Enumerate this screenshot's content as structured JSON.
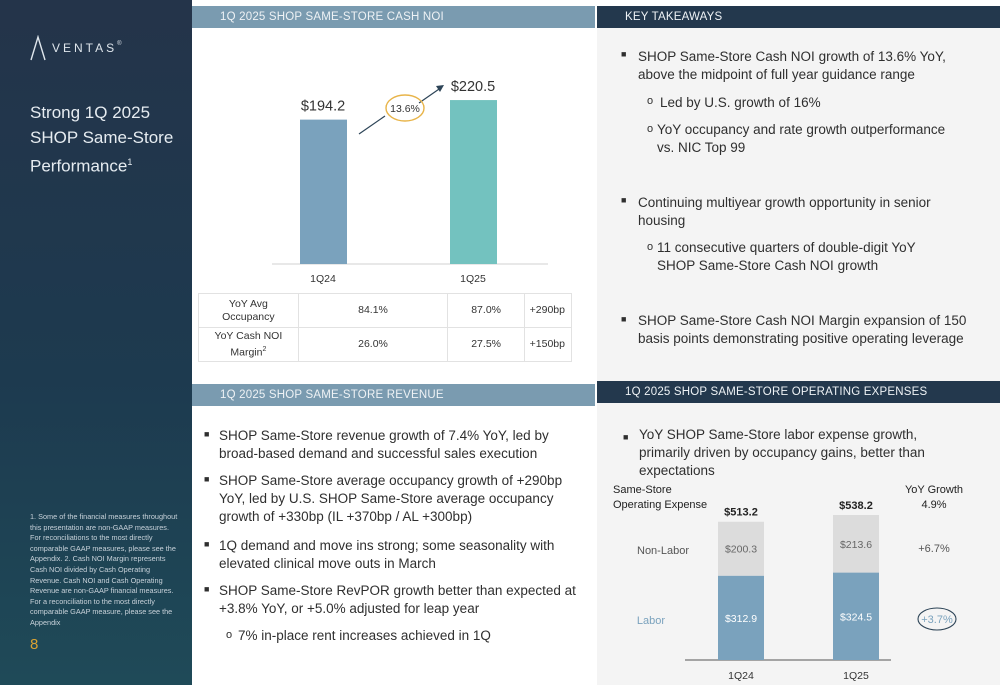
{
  "sidebar": {
    "logo_text": "VENTAS",
    "logo_mark": "®",
    "title": "Strong 1Q 2025 SHOP Same-Store Performance",
    "title_sup": "1",
    "footnote": "1. Some of the financial measures throughout this presentation are non-GAAP measures. For reconciliations to the most directly comparable GAAP measures, please see the Appendix. 2. Cash NOI Margin represents Cash NOI divided by Cash Operating Revenue. Cash NOI and Cash Operating Revenue are non-GAAP financial measures. For a reconciliation to the most directly comparable GAAP measure, please see the Appendix",
    "page_number": "8"
  },
  "headers": {
    "noi": "1Q 2025 SHOP SAME-STORE CASH NOI",
    "takeaways": "KEY TAKEAWAYS",
    "revenue": "1Q 2025 SHOP SAME-STORE REVENUE",
    "opex": "1Q 2025 SHOP SAME-STORE OPERATING EXPENSES"
  },
  "takeaways": {
    "b1": "SHOP Same-Store Cash NOI growth of 13.6% YoY, above the midpoint of full year guidance range",
    "b1_sub1": "Led by U.S. growth of 16%",
    "b1_sub2": "YoY occupancy and rate growth outperformance vs. NIC Top 99",
    "b2": "Continuing multiyear growth opportunity in senior housing",
    "b2_sub1": "11 consecutive quarters of double-digit YoY SHOP Same-Store Cash NOI growth",
    "b3": "SHOP Same-Store Cash NOI Margin expansion of 150 basis points demonstrating positive operating leverage"
  },
  "revenue": {
    "b1": "SHOP Same-Store revenue growth of 7.4% YoY, led by broad-based demand and successful sales execution",
    "b2": "SHOP Same-Store average occupancy growth of +290bp YoY, led by U.S. SHOP Same-Store average occupancy growth of +330bp (IL +370bp / AL +300bp)",
    "b3": "1Q demand and move ins strong; some seasonality with elevated clinical move outs in March",
    "b4": "SHOP Same-Store RevPOR growth better than expected at +3.8% YoY, or +5.0% adjusted for leap year",
    "b4_sub1": "7% in-place rent increases achieved in 1Q"
  },
  "opex": {
    "b1": "YoY SHOP Same-Store labor expense growth, primarily driven by occupancy gains, better than expectations"
  },
  "noi_table": {
    "rows": [
      {
        "label_line1": "YoY Avg",
        "label_line2": "Occupancy",
        "sup": "",
        "v1": "84.1%",
        "v2": "87.0%",
        "delta": "+290bp"
      },
      {
        "label_line1": "YoY Cash NOI",
        "label_line2": "Margin",
        "sup": "2",
        "v1": "26.0%",
        "v2": "27.5%",
        "delta": "+150bp"
      }
    ]
  },
  "chart_data": [
    {
      "type": "bar",
      "title": "1Q 2025 SHOP SAME-STORE CASH NOI",
      "categories": [
        "1Q24",
        "1Q25"
      ],
      "values": [
        194.2,
        220.5
      ],
      "value_labels": [
        "$194.2",
        "$220.5"
      ],
      "growth_label": "13.6%",
      "colors": [
        "#7aa2bd",
        "#73c2bf"
      ],
      "ylim": [
        0,
        230
      ]
    },
    {
      "type": "bar",
      "stacked": true,
      "title_line1": "Same-Store",
      "title_line2": "Operating Expense",
      "categories": [
        "1Q24",
        "1Q25"
      ],
      "totals": [
        "$513.2",
        "$538.2"
      ],
      "series": [
        {
          "name": "Labor",
          "values": [
            312.9,
            324.5
          ],
          "labels": [
            "$312.9",
            "$324.5"
          ],
          "color": "#7aa2bd",
          "growth": "+3.7%"
        },
        {
          "name": "Non-Labor",
          "values": [
            200.3,
            213.6
          ],
          "labels": [
            "$200.3",
            "$213.6"
          ],
          "color": "#dcdcdc",
          "growth": "+6.7%"
        }
      ],
      "growth_header_line1": "YoY Growth",
      "growth_header_line2": "4.9%",
      "ylim": [
        0,
        560
      ]
    }
  ]
}
